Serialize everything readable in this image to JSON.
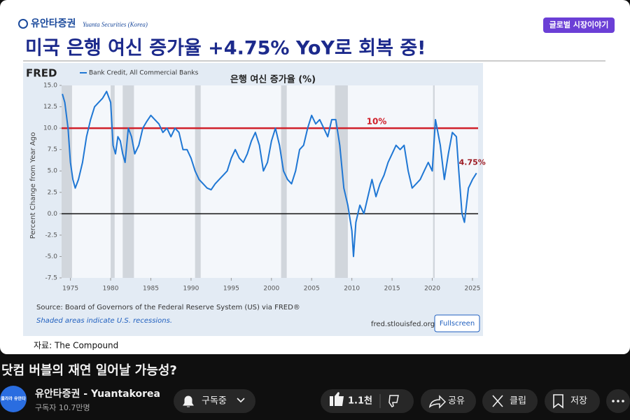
{
  "slide": {
    "brand": "유안타증권",
    "brand_sub": "Yuanta Securities (Korea)",
    "badge": "글로벌 시장이야기",
    "title": "미국 은행 여신 증가율 +4.75% YoY로 회복 중!",
    "source_note": "자료: The Compound"
  },
  "chart_data": {
    "type": "line",
    "logo": "FRED",
    "title": "은행 여신 증가율 (%)",
    "y_label": "Percent Change from Year Ago",
    "source": "Source: Board of Governors of the Federal Reserve System (US) via FRED®",
    "shading_note": "Shaded areas indicate U.S. recessions.",
    "site": "fred.stlouisfed.org",
    "fullscreen": "Fullscreen",
    "end_label": "4.75%",
    "series": [
      {
        "name": "Bank Credit, All Commercial Banks",
        "color": "#1f77d4",
        "x": [
          1974.0,
          1974.3,
          1974.7,
          1975.0,
          1975.3,
          1975.6,
          1976.0,
          1976.5,
          1977.0,
          1977.5,
          1978.0,
          1978.5,
          1979.0,
          1979.5,
          1980.0,
          1980.3,
          1980.6,
          1980.9,
          1981.2,
          1981.5,
          1981.8,
          1982.2,
          1982.6,
          1983.0,
          1983.5,
          1984.0,
          1984.5,
          1985.0,
          1985.5,
          1986.0,
          1986.5,
          1987.0,
          1987.5,
          1988.0,
          1988.5,
          1989.0,
          1989.5,
          1990.0,
          1990.5,
          1991.0,
          1991.5,
          1992.0,
          1992.5,
          1993.0,
          1993.5,
          1994.0,
          1994.5,
          1995.0,
          1995.5,
          1996.0,
          1996.5,
          1997.0,
          1997.5,
          1998.0,
          1998.5,
          1999.0,
          1999.5,
          2000.0,
          2000.5,
          2001.0,
          2001.5,
          2002.0,
          2002.5,
          2003.0,
          2003.5,
          2004.0,
          2004.5,
          2005.0,
          2005.5,
          2006.0,
          2006.5,
          2007.0,
          2007.5,
          2008.0,
          2008.5,
          2009.0,
          2009.5,
          2010.0,
          2010.2,
          2010.5,
          2011.0,
          2011.5,
          2012.0,
          2012.5,
          2013.0,
          2013.5,
          2014.0,
          2014.5,
          2015.0,
          2015.5,
          2016.0,
          2016.5,
          2017.0,
          2017.5,
          2018.0,
          2018.5,
          2019.0,
          2019.5,
          2020.0,
          2020.4,
          2021.0,
          2021.5,
          2022.0,
          2022.5,
          2023.0,
          2023.3,
          2023.7,
          2024.0,
          2024.5,
          2025.0,
          2025.5
        ],
        "values": [
          14,
          13,
          10,
          6,
          4,
          3,
          4,
          6,
          9,
          11,
          12.5,
          13,
          13.5,
          14.3,
          13,
          8,
          7,
          9,
          8.5,
          7,
          6,
          10,
          9,
          7,
          8,
          10,
          10.8,
          11.5,
          11,
          10.5,
          9.5,
          10,
          9,
          10,
          9.5,
          7.5,
          7.5,
          6.5,
          5,
          4,
          3.5,
          3,
          2.8,
          3.5,
          4,
          4.5,
          5,
          6.5,
          7.5,
          6.5,
          6,
          7,
          8.5,
          9.5,
          8,
          5,
          6,
          8.5,
          10,
          8,
          5,
          4,
          3.5,
          5,
          7.5,
          8,
          10,
          11.5,
          10.5,
          11,
          10,
          9,
          11,
          11,
          8,
          3,
          1,
          -2,
          -5,
          -1,
          1,
          0,
          2,
          4,
          2,
          3.5,
          4.5,
          6,
          7,
          8,
          7.5,
          8,
          5,
          3,
          3.5,
          4,
          5,
          6,
          5,
          11,
          8,
          4,
          7,
          9.5,
          9,
          5,
          0,
          -1,
          3,
          4,
          4.75
        ]
      }
    ],
    "recessions": [
      [
        1973.9,
        1975.2
      ],
      [
        1980.0,
        1980.5
      ],
      [
        1981.5,
        1982.9
      ],
      [
        1990.5,
        1991.2
      ],
      [
        2001.2,
        2001.9
      ],
      [
        2007.9,
        2009.5
      ],
      [
        2020.1,
        2020.3
      ]
    ],
    "hlines": [
      {
        "value": 10,
        "label": "10%",
        "color": "#d0202a"
      },
      {
        "value": 0,
        "color": "#111111"
      }
    ],
    "xlim": [
      1973.9,
      2025.7
    ],
    "ylim": [
      -7.5,
      15
    ],
    "xticks": [
      1975,
      1980,
      1985,
      1990,
      1995,
      2000,
      2005,
      2010,
      2015,
      2020,
      2025
    ],
    "yticks": [
      {
        "value": 15,
        "label": "15.0"
      },
      12.5,
      {
        "value": 10,
        "label": "10.0"
      },
      7.5,
      {
        "value": 5,
        "label": "5.0"
      },
      2.5,
      {
        "value": 0,
        "label": "0.0"
      },
      -2.5,
      {
        "value": -5,
        "label": "-5.0"
      },
      -7.5
    ],
    "grid": false
  },
  "video": {
    "title": "닷컴 버블의 재연 일어날 가능성?",
    "avatar": "올라라 유안타",
    "channel": "유안타증권 - Yuantakorea",
    "subscribers": "구독자 10.7만명",
    "subscribe": "구독중",
    "likes": "1.1천",
    "share": "공유",
    "clip": "클립",
    "save": "저장"
  }
}
